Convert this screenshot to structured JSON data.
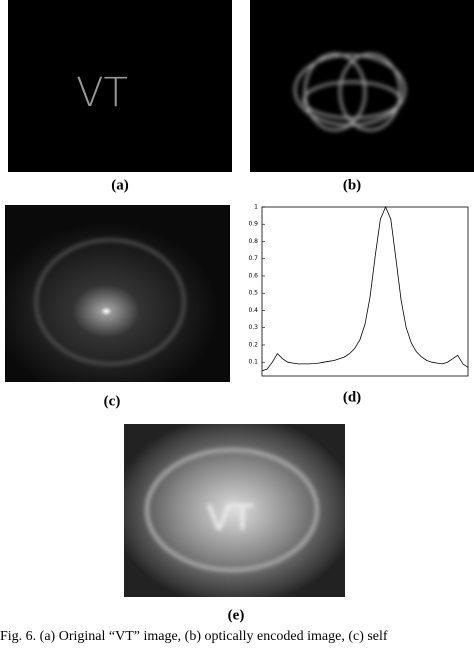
{
  "panels": {
    "a": {
      "label": "(a)",
      "text": "VT"
    },
    "b": {
      "label": "(b)"
    },
    "c": {
      "label": "(c)"
    },
    "d": {
      "label": "(d)"
    },
    "e": {
      "label": "(e)",
      "text": "VT"
    }
  },
  "chart_data": {
    "type": "line",
    "color": "#000000",
    "values": [
      0.05,
      0.06,
      0.1,
      0.15,
      0.12,
      0.1,
      0.095,
      0.09,
      0.09,
      0.09,
      0.092,
      0.095,
      0.1,
      0.105,
      0.11,
      0.12,
      0.13,
      0.15,
      0.18,
      0.23,
      0.32,
      0.48,
      0.72,
      0.93,
      1,
      0.93,
      0.7,
      0.46,
      0.3,
      0.21,
      0.16,
      0.13,
      0.11,
      0.1,
      0.095,
      0.09,
      0.1,
      0.12,
      0.14,
      0.09,
      0.07
    ],
    "ylim": [
      0.02,
      1
    ],
    "yticks": [
      0.1,
      0.2,
      0.3,
      0.4,
      0.5,
      0.6,
      0.7,
      0.8,
      0.9,
      1
    ]
  },
  "caption": "Fig. 6.  (a) Original “VT” image, (b) optically encoded image, (c) self"
}
